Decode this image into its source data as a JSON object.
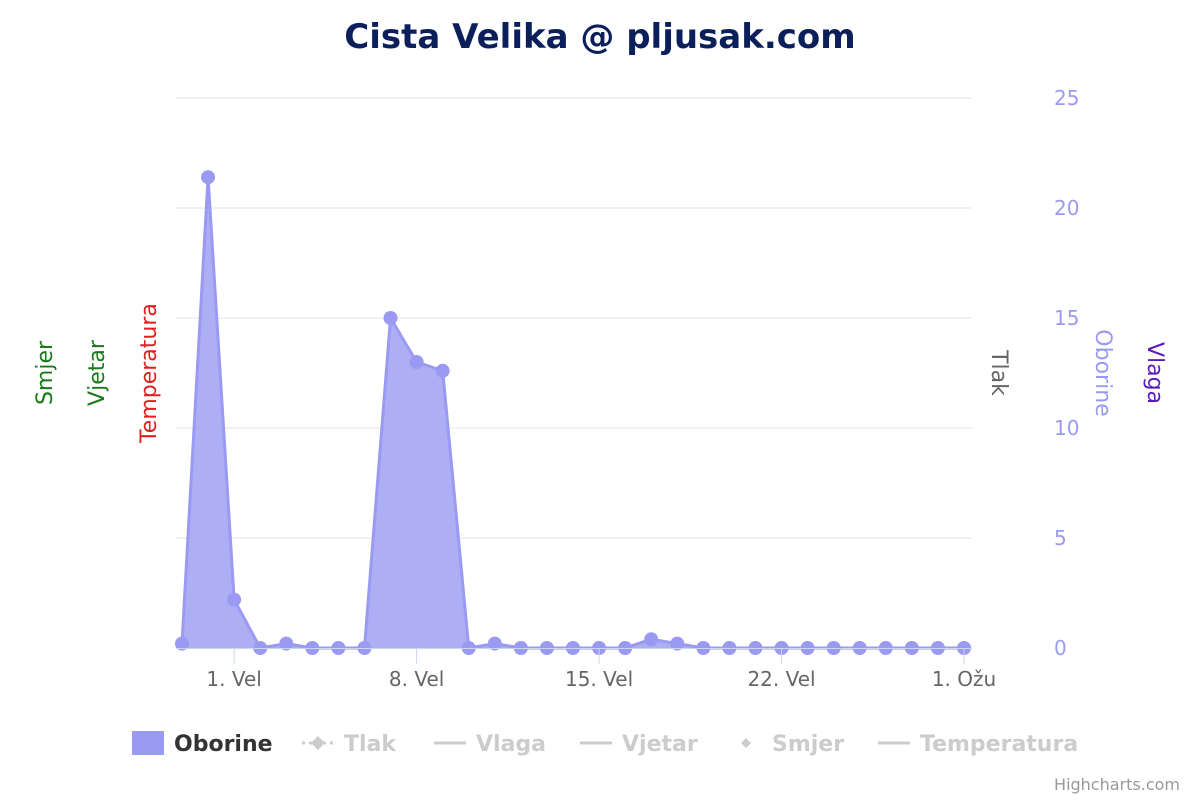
{
  "chart_data": {
    "type": "area",
    "title": "Cista Velika @ pljusak.com",
    "x_axis": {
      "type": "datetime",
      "tick_labels": [
        "1. Vel",
        "8. Vel",
        "15. Vel",
        "22. Vel",
        "1. Ožu"
      ],
      "tick_dates": [
        "2023-02-01",
        "2023-02-08",
        "2023-02-15",
        "2023-02-22",
        "2023-03-01"
      ]
    },
    "left_axis_titles": [
      {
        "name": "Smjer",
        "color": "#1a7a1a"
      },
      {
        "name": "Vjetar",
        "color": "#1a7a1a"
      },
      {
        "name": "Temperatura",
        "color": "#e02020"
      }
    ],
    "right_axis_titles": [
      {
        "name": "Tlak",
        "color": "#666666"
      },
      {
        "name": "Oborine",
        "color": "#9a9af2"
      },
      {
        "name": "Vlaga",
        "color": "#5b1bb8"
      }
    ],
    "y_axis": {
      "name": "Oborine",
      "ylim": [
        0,
        25
      ],
      "ticks": [
        0,
        5,
        10,
        15,
        20,
        25
      ],
      "tick_color": "#9a9af2",
      "grid": true
    },
    "series": [
      {
        "name": "Oborine",
        "type": "area",
        "visible": true,
        "color": "#9a9af2",
        "x": [
          "2023-01-30",
          "2023-01-31",
          "2023-02-01",
          "2023-02-02",
          "2023-02-03",
          "2023-02-04",
          "2023-02-05",
          "2023-02-06",
          "2023-02-07",
          "2023-02-08",
          "2023-02-09",
          "2023-02-10",
          "2023-02-11",
          "2023-02-12",
          "2023-02-13",
          "2023-02-14",
          "2023-02-15",
          "2023-02-16",
          "2023-02-17",
          "2023-02-18",
          "2023-02-19",
          "2023-02-20",
          "2023-02-21",
          "2023-02-22",
          "2023-02-23",
          "2023-02-24",
          "2023-02-25",
          "2023-02-26",
          "2023-02-27",
          "2023-02-28",
          "2023-03-01"
        ],
        "values": [
          0.2,
          21.4,
          2.2,
          0.0,
          0.2,
          0.0,
          0.0,
          0.0,
          15.0,
          13.0,
          12.6,
          0.0,
          0.2,
          0.0,
          0.0,
          0.0,
          0.0,
          0.0,
          0.4,
          0.2,
          0.0,
          0.0,
          0.0,
          0.0,
          0.0,
          0.0,
          0.0,
          0.0,
          0.0,
          0.0,
          0.0
        ]
      }
    ],
    "legend": {
      "placement": "bottom-center",
      "items": [
        {
          "name": "Oborine",
          "symbol": "area",
          "active": true
        },
        {
          "name": "Tlak",
          "symbol": "dashed-line-diamond",
          "active": false
        },
        {
          "name": "Vlaga",
          "symbol": "line",
          "active": false
        },
        {
          "name": "Vjetar",
          "symbol": "line",
          "active": false
        },
        {
          "name": "Smjer",
          "symbol": "diamond",
          "active": false
        },
        {
          "name": "Temperatura",
          "symbol": "line",
          "active": false
        }
      ],
      "active_color": "#333333",
      "inactive_color": "#cccccc"
    },
    "credit": "Highcharts.com"
  }
}
